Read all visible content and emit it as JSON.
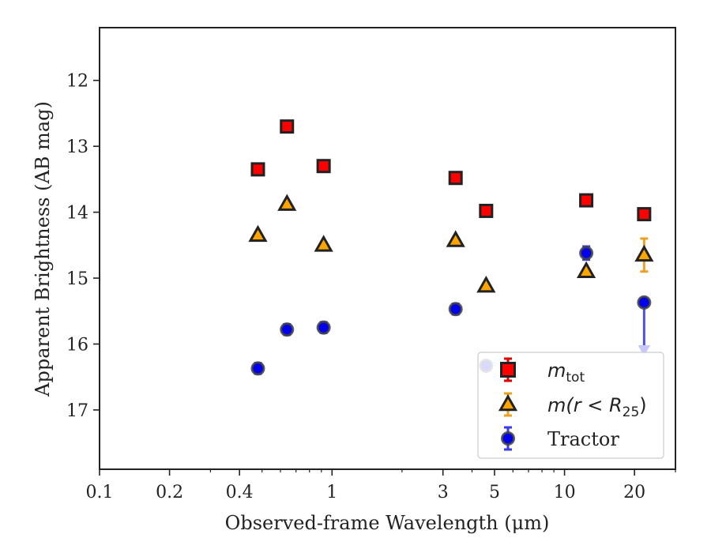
{
  "chart_data": {
    "type": "scatter",
    "title": "",
    "xlabel": "Observed-frame Wavelength (μm)",
    "ylabel": "Apparent Brightness (AB mag)",
    "xscale": "log",
    "xlim": [
      0.1,
      30
    ],
    "ylim": [
      17.9,
      11.2
    ],
    "y_inverted": true,
    "grid": false,
    "legend_position": "lower-right",
    "x_ticks": [
      {
        "value": 0.1,
        "label": "0.1"
      },
      {
        "value": 0.2,
        "label": "0.2"
      },
      {
        "value": 0.4,
        "label": "0.4"
      },
      {
        "value": 1,
        "label": "1"
      },
      {
        "value": 3,
        "label": "3"
      },
      {
        "value": 5,
        "label": "5"
      },
      {
        "value": 10,
        "label": "10"
      },
      {
        "value": 20,
        "label": "20"
      }
    ],
    "x_minor_ticks": [
      0.3,
      0.5,
      0.6,
      0.7,
      0.8,
      0.9,
      2,
      4,
      6,
      7,
      8,
      9,
      30
    ],
    "y_ticks": [
      {
        "value": 12,
        "label": "12"
      },
      {
        "value": 13,
        "label": "13"
      },
      {
        "value": 14,
        "label": "14"
      },
      {
        "value": 15,
        "label": "15"
      },
      {
        "value": 16,
        "label": "16"
      },
      {
        "value": 17,
        "label": "17"
      }
    ],
    "series": [
      {
        "name": "m_tot",
        "legend_math": {
          "base": "m",
          "sub": "tot"
        },
        "marker": "square",
        "color": "#ff0000",
        "edge": "#222222",
        "errcolor": "#e00000",
        "x": [
          0.48,
          0.64,
          0.92,
          3.4,
          4.6,
          12.4,
          22
        ],
        "y": [
          13.35,
          12.7,
          13.3,
          13.48,
          13.98,
          13.82,
          14.03
        ],
        "err": [
          0.04,
          0.04,
          0.06,
          0.04,
          0.04,
          0.06,
          0.04
        ]
      },
      {
        "name": "m(r < R_25)",
        "legend_math": {
          "pre": "m(r < R",
          "sub": "25",
          "post": ")"
        },
        "marker": "triangle",
        "color": "#ffa500",
        "edge": "#222222",
        "errcolor": "#f0a020",
        "x": [
          0.48,
          0.64,
          0.92,
          3.4,
          4.6,
          12.4,
          22
        ],
        "y": [
          14.35,
          13.88,
          14.5,
          14.43,
          15.12,
          14.9,
          14.65
        ],
        "err": [
          0.03,
          0.03,
          0.03,
          0.03,
          0.03,
          0.04,
          0.25
        ]
      },
      {
        "name": "Tractor",
        "marker": "circle",
        "color": "#0000ee",
        "edge": "#444444",
        "errcolor": "#3a3aee",
        "x": [
          0.48,
          0.64,
          0.92,
          3.4,
          4.6,
          12.4,
          22
        ],
        "y": [
          16.37,
          15.78,
          15.75,
          15.47,
          16.33,
          14.62,
          15.37
        ],
        "err": [
          0.08,
          0.08,
          0.08,
          0.08,
          0.06,
          0.1,
          0.02
        ],
        "upper_limit_arrow": {
          "x": 22,
          "from": 15.37,
          "to": 16.12
        }
      }
    ]
  }
}
